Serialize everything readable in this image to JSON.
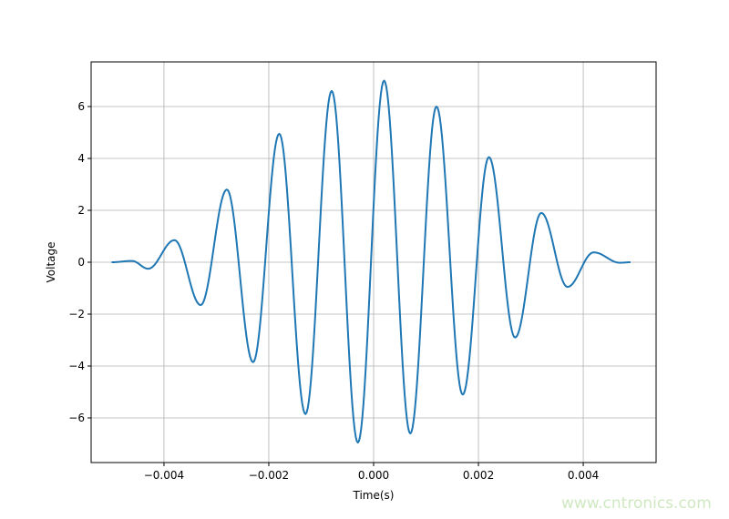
{
  "chart_data": {
    "type": "line",
    "title": "",
    "xlabel": "Time(s)",
    "ylabel": "Voltage",
    "xlim": [
      -0.00539,
      0.00539
    ],
    "ylim": [
      -7.72,
      7.72
    ],
    "grid": true,
    "xticks": [
      -0.004,
      -0.002,
      0.0,
      0.002,
      0.004
    ],
    "xtick_labels": [
      "−0.004",
      "−0.002",
      "0.000",
      "0.002",
      "0.004"
    ],
    "yticks": [
      -6,
      -4,
      -2,
      0,
      2,
      4,
      6
    ],
    "ytick_labels": [
      "−6",
      "−4",
      "−2",
      "0",
      "2",
      "4",
      "6"
    ],
    "series_color": "#1f77b4",
    "series": [
      {
        "x": [
          -0.005,
          -0.00461,
          -0.0043,
          -0.0038,
          -0.0033,
          -0.0028,
          -0.0023,
          -0.0018,
          -0.0013,
          -0.0008,
          -0.0003,
          0.0002,
          0.0007,
          0.0012,
          0.0017,
          0.0022,
          0.0027,
          0.0032,
          0.0037,
          0.0042,
          0.0047,
          0.0049
        ],
        "y": [
          0.0,
          0.05,
          -0.25,
          0.85,
          -1.65,
          2.8,
          -3.85,
          4.95,
          -5.85,
          6.6,
          -6.95,
          7.0,
          -6.6,
          6.0,
          -5.1,
          4.05,
          -2.9,
          1.9,
          -0.95,
          0.38,
          -0.02,
          0.0
        ]
      }
    ]
  },
  "watermark": "www.cntronics.com"
}
